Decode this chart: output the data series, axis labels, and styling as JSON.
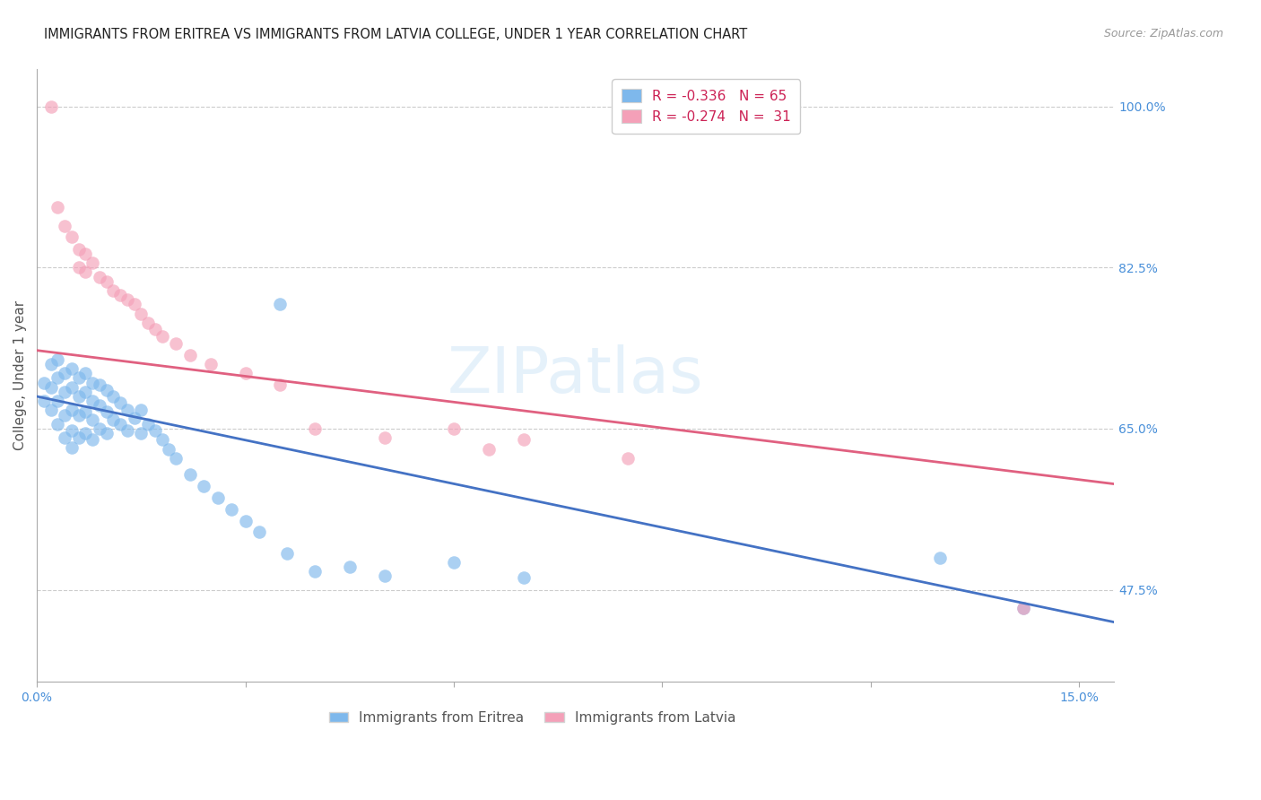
{
  "title": "IMMIGRANTS FROM ERITREA VS IMMIGRANTS FROM LATVIA COLLEGE, UNDER 1 YEAR CORRELATION CHART",
  "source": "Source: ZipAtlas.com",
  "ylabel": "College, Under 1 year",
  "xlim": [
    0.0,
    0.155
  ],
  "ylim": [
    0.375,
    1.04
  ],
  "xtick_positions": [
    0.0,
    0.03,
    0.06,
    0.09,
    0.12,
    0.15
  ],
  "xticklabels": [
    "0.0%",
    "",
    "",
    "",
    "",
    "15.0%"
  ],
  "yticks_right": [
    0.475,
    0.65,
    0.825,
    1.0
  ],
  "yticklabels_right": [
    "47.5%",
    "65.0%",
    "82.5%",
    "100.0%"
  ],
  "legend_title_eritrea": "Immigrants from Eritrea",
  "legend_title_latvia": "Immigrants from Latvia",
  "R_eritrea": "-0.336",
  "N_eritrea": "65",
  "R_latvia": "-0.274",
  "N_latvia": "31",
  "color_eritrea": "#7eb8ec",
  "color_latvia": "#f4a0b8",
  "line_color_eritrea": "#4472c4",
  "line_color_latvia": "#e06080",
  "background_color": "#ffffff",
  "watermark": "ZIPatlas",
  "grid_color": "#cccccc",
  "eritrea_x": [
    0.001,
    0.001,
    0.002,
    0.002,
    0.002,
    0.003,
    0.003,
    0.003,
    0.003,
    0.004,
    0.004,
    0.004,
    0.004,
    0.005,
    0.005,
    0.005,
    0.005,
    0.005,
    0.006,
    0.006,
    0.006,
    0.006,
    0.007,
    0.007,
    0.007,
    0.007,
    0.008,
    0.008,
    0.008,
    0.008,
    0.009,
    0.009,
    0.009,
    0.01,
    0.01,
    0.01,
    0.011,
    0.011,
    0.012,
    0.012,
    0.013,
    0.013,
    0.014,
    0.015,
    0.015,
    0.016,
    0.017,
    0.018,
    0.019,
    0.02,
    0.022,
    0.024,
    0.026,
    0.028,
    0.03,
    0.032,
    0.036,
    0.04,
    0.045,
    0.05,
    0.06,
    0.07,
    0.035,
    0.13,
    0.142
  ],
  "eritrea_y": [
    0.7,
    0.68,
    0.72,
    0.695,
    0.67,
    0.725,
    0.705,
    0.68,
    0.655,
    0.71,
    0.69,
    0.665,
    0.64,
    0.715,
    0.695,
    0.67,
    0.648,
    0.63,
    0.705,
    0.685,
    0.665,
    0.64,
    0.71,
    0.69,
    0.668,
    0.645,
    0.7,
    0.68,
    0.66,
    0.638,
    0.698,
    0.675,
    0.65,
    0.692,
    0.668,
    0.645,
    0.685,
    0.66,
    0.678,
    0.655,
    0.67,
    0.648,
    0.662,
    0.67,
    0.645,
    0.655,
    0.648,
    0.638,
    0.628,
    0.618,
    0.6,
    0.588,
    0.575,
    0.562,
    0.55,
    0.538,
    0.515,
    0.495,
    0.5,
    0.49,
    0.505,
    0.488,
    0.785,
    0.51,
    0.455
  ],
  "latvia_x": [
    0.002,
    0.003,
    0.004,
    0.005,
    0.006,
    0.006,
    0.007,
    0.007,
    0.008,
    0.009,
    0.01,
    0.011,
    0.012,
    0.013,
    0.014,
    0.015,
    0.016,
    0.017,
    0.018,
    0.02,
    0.022,
    0.025,
    0.03,
    0.035,
    0.04,
    0.05,
    0.06,
    0.065,
    0.07,
    0.085,
    0.142
  ],
  "latvia_y": [
    1.0,
    0.89,
    0.87,
    0.858,
    0.845,
    0.825,
    0.84,
    0.82,
    0.83,
    0.815,
    0.81,
    0.8,
    0.795,
    0.79,
    0.785,
    0.775,
    0.765,
    0.758,
    0.75,
    0.742,
    0.73,
    0.72,
    0.71,
    0.698,
    0.65,
    0.64,
    0.65,
    0.628,
    0.638,
    0.618,
    0.455
  ],
  "title_fontsize": 10.5,
  "legend_fontsize": 11,
  "tick_fontsize": 10,
  "ylabel_fontsize": 11
}
